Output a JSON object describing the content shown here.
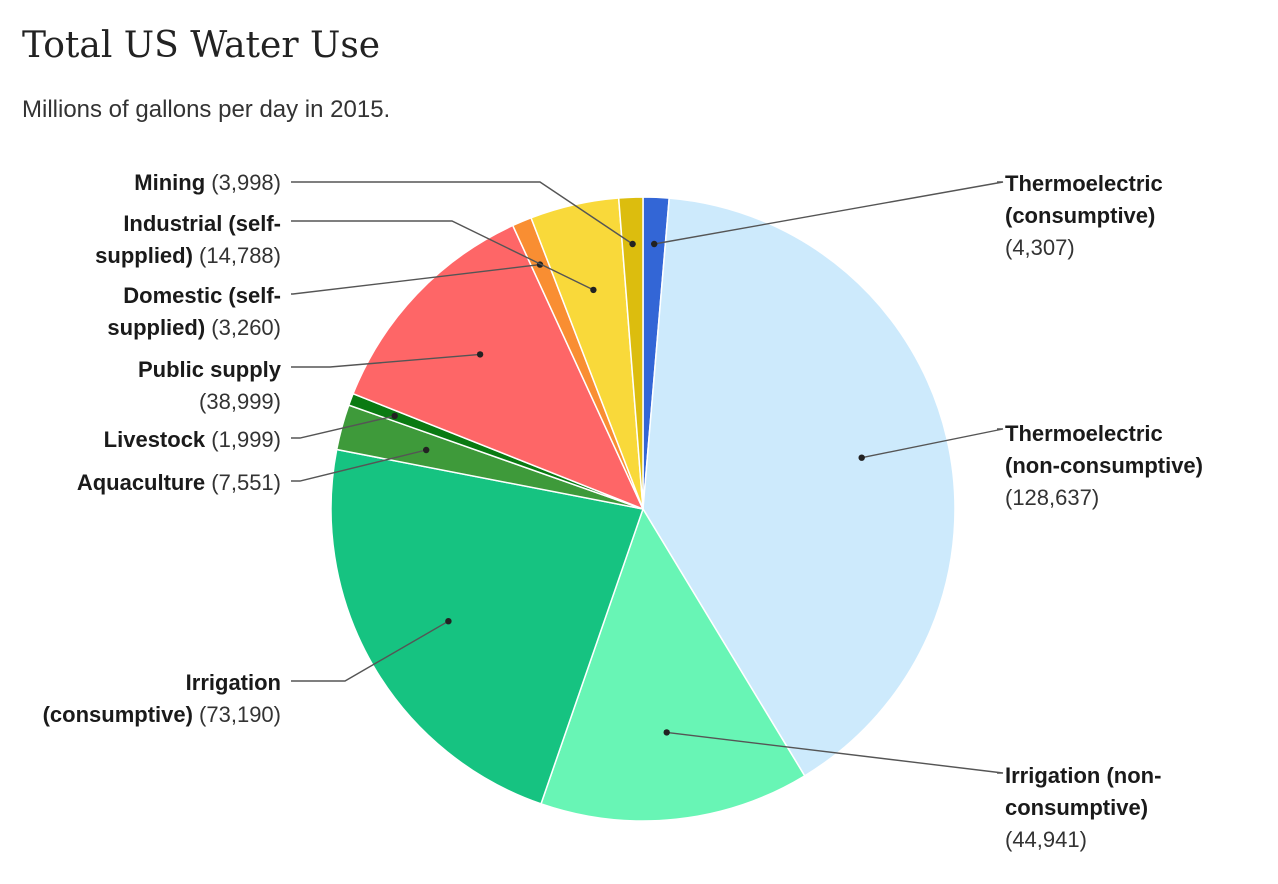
{
  "title": "Total US Water Use",
  "subtitle": "Millions of gallons per day in 2015.",
  "chart_data": {
    "type": "pie",
    "title": "Total US Water Use",
    "subtitle": "Millions of gallons per day in 2015.",
    "slices": [
      {
        "name": "Thermoelectric (consumptive)",
        "value": 4307,
        "value_label": "(4,307)",
        "color": "#3366d6",
        "label_lines": [
          "Thermoelectric",
          "(consumptive)"
        ]
      },
      {
        "name": "Thermoelectric (non-consumptive)",
        "value": 128637,
        "value_label": "(128,637)",
        "color": "#cdeafc",
        "label_lines": [
          "Thermoelectric",
          "(non-consumptive)"
        ]
      },
      {
        "name": "Irrigation (non-consumptive)",
        "value": 44941,
        "value_label": "(44,941)",
        "color": "#68f5b5",
        "label_lines": [
          "Irrigation (non-",
          "consumptive)"
        ]
      },
      {
        "name": "Irrigation (consumptive)",
        "value": 73190,
        "value_label": "(73,190)",
        "color": "#16c381",
        "label_lines": [
          "Irrigation",
          "(consumptive)"
        ]
      },
      {
        "name": "Aquaculture",
        "value": 7551,
        "value_label": "(7,551)",
        "color": "#3e9a3a",
        "label_lines": [
          "Aquaculture"
        ]
      },
      {
        "name": "Livestock",
        "value": 1999,
        "value_label": "(1,999)",
        "color": "#0a7a12",
        "label_lines": [
          "Livestock"
        ]
      },
      {
        "name": "Public supply",
        "value": 38999,
        "value_label": "(38,999)",
        "color": "#fe6667",
        "label_lines": [
          "Public supply"
        ]
      },
      {
        "name": "Domestic (self-supplied)",
        "value": 3260,
        "value_label": "(3,260)",
        "color": "#f98e32",
        "label_lines": [
          "Domestic (self-",
          "supplied)"
        ]
      },
      {
        "name": "Industrial (self-supplied)",
        "value": 14788,
        "value_label": "(14,788)",
        "color": "#f9d93a",
        "label_lines": [
          "Industrial (self-",
          "supplied)"
        ]
      },
      {
        "name": "Mining",
        "value": 3998,
        "value_label": "(3,998)",
        "color": "#dcbd0e",
        "label_lines": [
          "Mining"
        ]
      }
    ]
  }
}
